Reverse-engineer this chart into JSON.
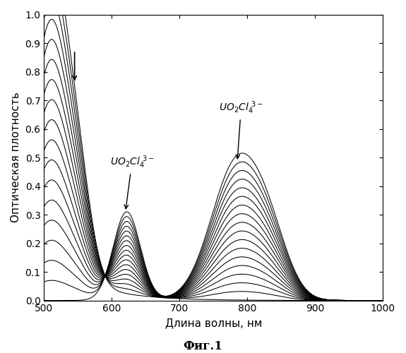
{
  "xlabel": "Длина волны, нм",
  "ylabel": "Оптическая плотность",
  "caption": "Фиг.1",
  "xlim": [
    500,
    1000
  ],
  "ylim": [
    0,
    1.0
  ],
  "xticks": [
    500,
    600,
    700,
    800,
    900,
    1000
  ],
  "yticks": [
    0.0,
    0.1,
    0.2,
    0.3,
    0.4,
    0.5,
    0.6,
    0.7,
    0.8,
    0.9,
    1.0
  ],
  "n_curves": 18,
  "line_color": "#000000",
  "background_color": "#ffffff"
}
